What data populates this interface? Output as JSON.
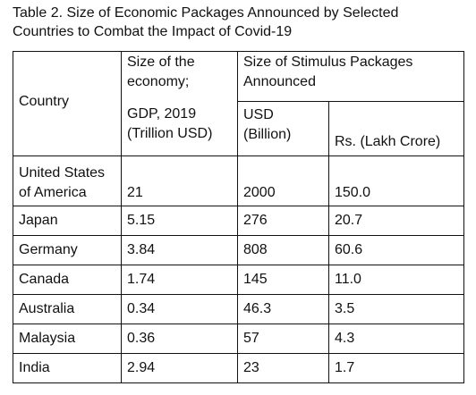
{
  "caption": {
    "line1": "Table 2. Size of Economic Packages Announced by Selected",
    "line2": "Countries to Combat the Impact of Covid-19"
  },
  "headers": {
    "country": "Country",
    "economy_line1": "Size of the",
    "economy_line2": "economy;",
    "gdp_line1": "GDP, 2019",
    "gdp_line2": "(Trillion USD)",
    "stimulus_line1": "Size of Stimulus Packages",
    "stimulus_line2": "Announced",
    "usd_line1": "USD",
    "usd_line2": "(Billion)",
    "rs": "Rs. (Lakh Crore)"
  },
  "rows": [
    {
      "country_line1": "United States",
      "country_line2": "of America",
      "gdp": "21",
      "usd": "2000",
      "rs": "150.0"
    },
    {
      "country": "Japan",
      "gdp": "5.15",
      "usd": "276",
      "rs": "20.7"
    },
    {
      "country": "Germany",
      "gdp": "3.84",
      "usd": "808",
      "rs": "60.6"
    },
    {
      "country": "Canada",
      "gdp": "1.74",
      "usd": "145",
      "rs": "11.0"
    },
    {
      "country": "Australia",
      "gdp": "0.34",
      "usd": "46.3",
      "rs": "3.5"
    },
    {
      "country": "Malaysia",
      "gdp": "0.36",
      "usd": "57",
      "rs": "4.3"
    },
    {
      "country": "India",
      "gdp": "2.94",
      "usd": "23",
      "rs": "1.7"
    }
  ]
}
